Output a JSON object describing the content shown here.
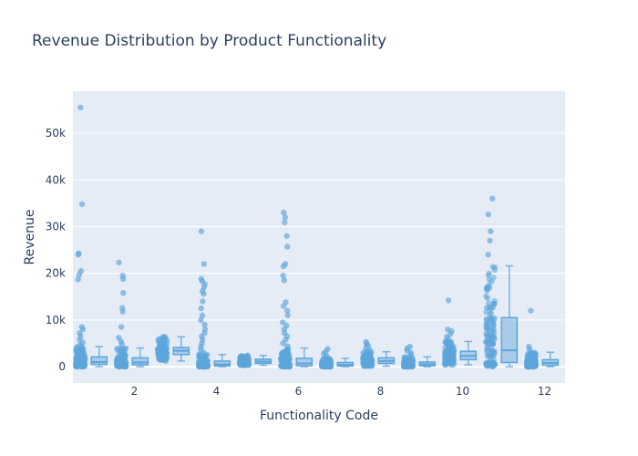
{
  "chart_data": {
    "type": "box",
    "title": "Revenue Distribution by Product Functionality",
    "xlabel": "Functionality Code",
    "ylabel": "Revenue",
    "xlim": [
      0.5,
      12.5
    ],
    "ylim": [
      -3500,
      59000
    ],
    "x_ticks": [
      2,
      4,
      6,
      8,
      10,
      12
    ],
    "y_ticks": [
      0,
      10000,
      20000,
      30000,
      40000,
      50000
    ],
    "y_tick_labels": [
      "0",
      "10k",
      "20k",
      "30k",
      "40k",
      "50k"
    ],
    "grid": true,
    "colors": {
      "box": "#5da5da",
      "plot_bg": "#e5ecf6",
      "grid": "#ffffff",
      "text": "#2a3f5f"
    },
    "boxpoints": "all",
    "series": [
      {
        "x": 1,
        "q1": 500,
        "median": 1000,
        "q3": 2100,
        "lowerfence": 0,
        "upperfence": 4300,
        "outliers": [
          55500,
          34800,
          24300,
          24000,
          20500,
          19700,
          18700,
          8500,
          8000,
          7200,
          6500,
          5800,
          5200,
          4700
        ]
      },
      {
        "x": 2,
        "q1": 400,
        "median": 900,
        "q3": 1900,
        "lowerfence": 0,
        "upperfence": 4000,
        "outliers": [
          22300,
          19500,
          18800,
          15800,
          12600,
          11800,
          8500,
          6200,
          5400,
          4800
        ]
      },
      {
        "x": 3,
        "q1": 2600,
        "median": 3400,
        "q3": 4100,
        "lowerfence": 1200,
        "upperfence": 6400,
        "outliers": []
      },
      {
        "x": 4,
        "q1": 150,
        "median": 500,
        "q3": 1200,
        "lowerfence": 0,
        "upperfence": 2600,
        "outliers": [
          29000,
          22000,
          18800,
          18300,
          17700,
          17000,
          16200,
          15600,
          14000,
          12500,
          11000,
          10000,
          9000,
          8000,
          7200,
          6500,
          5800,
          5000,
          4300,
          3600,
          3000
        ]
      },
      {
        "x": 5,
        "q1": 700,
        "median": 1100,
        "q3": 1600,
        "lowerfence": 300,
        "upperfence": 2400,
        "outliers": []
      },
      {
        "x": 6,
        "q1": 200,
        "median": 700,
        "q3": 1800,
        "lowerfence": 0,
        "upperfence": 4000,
        "outliers": [
          33000,
          32000,
          30900,
          28000,
          25700,
          22000,
          21500,
          19500,
          18500,
          13800,
          13000,
          12000,
          11000,
          9500,
          8800,
          8000,
          7200,
          6500,
          5800,
          5000,
          4400
        ]
      },
      {
        "x": 7,
        "q1": 150,
        "median": 400,
        "q3": 900,
        "lowerfence": 0,
        "upperfence": 1800,
        "outliers": [
          3800,
          3200,
          2800,
          2300
        ]
      },
      {
        "x": 8,
        "q1": 700,
        "median": 1200,
        "q3": 1900,
        "lowerfence": 100,
        "upperfence": 3200,
        "outliers": [
          5300,
          4900,
          4500,
          4000,
          3600
        ]
      },
      {
        "x": 9,
        "q1": 200,
        "median": 500,
        "q3": 1000,
        "lowerfence": 0,
        "upperfence": 2100,
        "outliers": [
          4300,
          3900,
          3400,
          3000,
          2600
        ]
      },
      {
        "x": 10,
        "q1": 1500,
        "median": 2300,
        "q3": 3300,
        "lowerfence": 400,
        "upperfence": 5400,
        "outliers": [
          14200,
          8000,
          7600,
          7000,
          6400,
          5900
        ]
      },
      {
        "x": 11,
        "q1": 900,
        "median": 3500,
        "q3": 10500,
        "lowerfence": 0,
        "upperfence": 21600,
        "outliers": [
          36000,
          32600,
          29000,
          27000,
          24000
        ]
      },
      {
        "x": 12,
        "q1": 300,
        "median": 800,
        "q3": 1500,
        "lowerfence": 0,
        "upperfence": 3100,
        "outliers": [
          12000,
          4300,
          3700
        ]
      }
    ]
  }
}
